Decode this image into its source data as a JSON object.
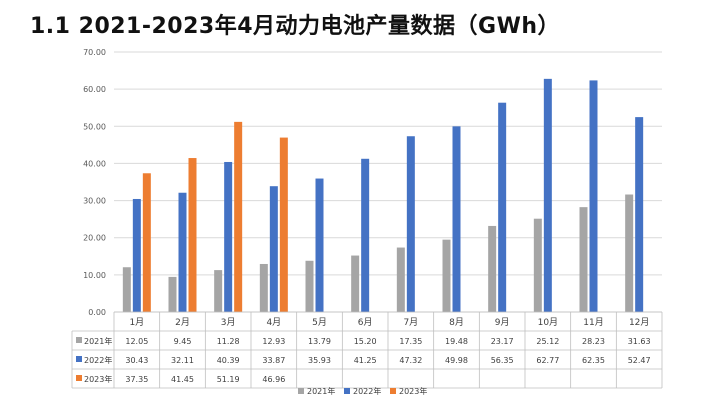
{
  "page": {
    "title": "1.1 2021-2023年4月动力电池产量数据（GWh）"
  },
  "chart_data": {
    "type": "bar",
    "title": "",
    "xlabel": "",
    "ylabel": "",
    "ylim": [
      0,
      70
    ],
    "yticks": [
      0,
      10,
      20,
      30,
      40,
      50,
      60,
      70
    ],
    "ytick_labels": [
      "0.00",
      "10.00",
      "20.00",
      "30.00",
      "40.00",
      "50.00",
      "60.00",
      "70.00"
    ],
    "grid": true,
    "legend_position": "bottom",
    "categories": [
      "1月",
      "2月",
      "3月",
      "4月",
      "5月",
      "6月",
      "7月",
      "8月",
      "9月",
      "10月",
      "11月",
      "12月"
    ],
    "series": [
      {
        "name": "2021年",
        "color": "#a5a5a5",
        "values": [
          12.05,
          9.45,
          11.28,
          12.93,
          13.79,
          15.2,
          17.35,
          19.48,
          23.17,
          25.12,
          28.23,
          31.63
        ],
        "labels": [
          "12.05",
          "9.45",
          "11.28",
          "12.93",
          "13.79",
          "15.20",
          "17.35",
          "19.48",
          "23.17",
          "25.12",
          "28.23",
          "31.63"
        ]
      },
      {
        "name": "2022年",
        "color": "#4472c4",
        "values": [
          30.43,
          32.11,
          40.39,
          33.87,
          35.93,
          41.25,
          47.32,
          49.98,
          56.35,
          62.77,
          62.35,
          52.47
        ],
        "labels": [
          "30.43",
          "32.11",
          "40.39",
          "33.87",
          "35.93",
          "41.25",
          "47.32",
          "49.98",
          "56.35",
          "62.77",
          "62.35",
          "52.47"
        ]
      },
      {
        "name": "2023年",
        "color": "#ed7d31",
        "values": [
          37.35,
          41.45,
          51.19,
          46.96,
          null,
          null,
          null,
          null,
          null,
          null,
          null,
          null
        ],
        "labels": [
          "37.35",
          "41.45",
          "51.19",
          "46.96",
          "",
          "",
          "",
          "",
          "",
          "",
          "",
          ""
        ]
      }
    ]
  }
}
